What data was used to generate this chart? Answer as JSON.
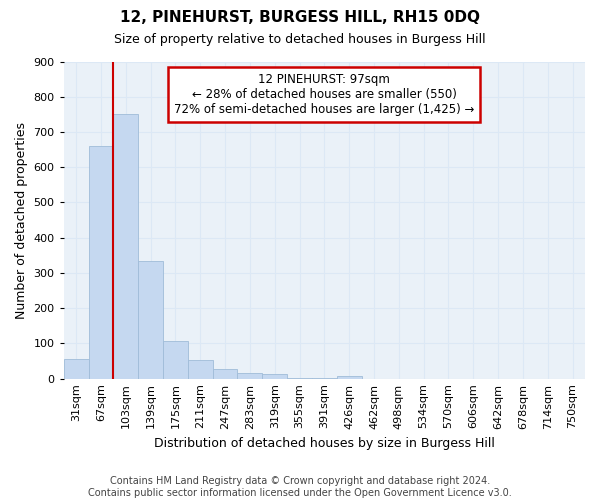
{
  "title": "12, PINEHURST, BURGESS HILL, RH15 0DQ",
  "subtitle": "Size of property relative to detached houses in Burgess Hill",
  "xlabel": "Distribution of detached houses by size in Burgess Hill",
  "ylabel": "Number of detached properties",
  "footer_line1": "Contains HM Land Registry data © Crown copyright and database right 2024.",
  "footer_line2": "Contains public sector information licensed under the Open Government Licence v3.0.",
  "bin_labels": [
    "31sqm",
    "67sqm",
    "103sqm",
    "139sqm",
    "175sqm",
    "211sqm",
    "247sqm",
    "283sqm",
    "319sqm",
    "355sqm",
    "391sqm",
    "426sqm",
    "462sqm",
    "498sqm",
    "534sqm",
    "570sqm",
    "606sqm",
    "642sqm",
    "678sqm",
    "714sqm",
    "750sqm"
  ],
  "bar_values": [
    55,
    660,
    750,
    335,
    107,
    52,
    27,
    15,
    12,
    3,
    3,
    8,
    0,
    0,
    0,
    0,
    0,
    0,
    0,
    0,
    0
  ],
  "bar_color": "#c5d8f0",
  "bar_edge_color": "#a0bcd8",
  "grid_color": "#dce8f5",
  "vline_x_index": 2,
  "annotation_text_line1": "12 PINEHURST: 97sqm",
  "annotation_text_line2": "← 28% of detached houses are smaller (550)",
  "annotation_text_line3": "72% of semi-detached houses are larger (1,425) →",
  "annotation_box_color": "#cc0000",
  "vline_color": "#cc0000",
  "ylim": [
    0,
    900
  ],
  "yticks": [
    0,
    100,
    200,
    300,
    400,
    500,
    600,
    700,
    800,
    900
  ],
  "background_color": "#ffffff",
  "plot_bg_color": "#eaf1f8",
  "title_fontsize": 11,
  "subtitle_fontsize": 9,
  "ylabel_fontsize": 9,
  "xlabel_fontsize": 9,
  "tick_fontsize": 8,
  "annot_fontsize": 8.5,
  "footer_fontsize": 7
}
